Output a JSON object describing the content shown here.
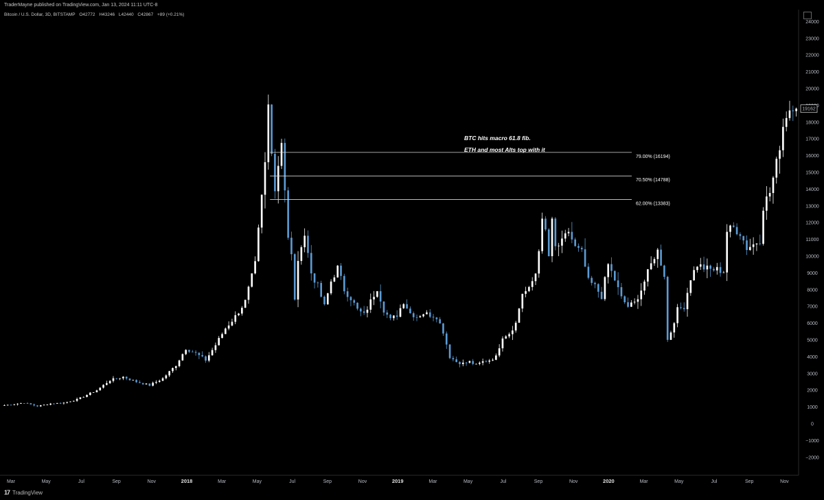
{
  "header": {
    "published": "TraderMayne published on TradingView.com, Jan 13, 2024 11:11 UTC-8"
  },
  "symbol": {
    "name": "Bitcoin / U.S. Dollar, 3D, BITSTAMP",
    "open": "O42772",
    "high": "H43246",
    "low": "L42440",
    "close": "C42867",
    "change": "+89 (+0.21%)"
  },
  "footer": {
    "logo": "17",
    "brand": "TradingView"
  },
  "chart_data": {
    "type": "candlestick",
    "title": "",
    "price_label": "19162",
    "y_ticks": [
      -2000,
      -1000,
      0,
      1000,
      2000,
      3000,
      4000,
      5000,
      6000,
      7000,
      8000,
      9000,
      10000,
      11000,
      12000,
      13000,
      14000,
      15000,
      16000,
      17000,
      18000,
      19000,
      20000,
      21000,
      22000,
      23000,
      24000
    ],
    "ylim": [
      -3000,
      24500
    ],
    "x_labels": [
      {
        "label": "Mar",
        "year": false
      },
      {
        "label": "May",
        "year": false
      },
      {
        "label": "Jul",
        "year": false
      },
      {
        "label": "Sep",
        "year": false
      },
      {
        "label": "Nov",
        "year": false
      },
      {
        "label": "2018",
        "year": true
      },
      {
        "label": "Mar",
        "year": false
      },
      {
        "label": "May",
        "year": false
      },
      {
        "label": "Jul",
        "year": false
      },
      {
        "label": "Sep",
        "year": false
      },
      {
        "label": "Nov",
        "year": false
      },
      {
        "label": "2019",
        "year": true
      },
      {
        "label": "Mar",
        "year": false
      },
      {
        "label": "May",
        "year": false
      },
      {
        "label": "Jul",
        "year": false
      },
      {
        "label": "Sep",
        "year": false
      },
      {
        "label": "Nov",
        "year": false
      },
      {
        "label": "2020",
        "year": true
      },
      {
        "label": "Mar",
        "year": false
      },
      {
        "label": "May",
        "year": false
      },
      {
        "label": "Jul",
        "year": false
      },
      {
        "label": "Sep",
        "year": false
      },
      {
        "label": "Nov",
        "year": false
      }
    ],
    "fib_levels": [
      {
        "label": "79.00% (16194)",
        "value": 16194
      },
      {
        "label": "70.50% (14788)",
        "value": 14788
      },
      {
        "label": "62.00% (13383)",
        "value": 13383
      }
    ],
    "annotations": [
      "BTC hits macro 61.8 fib.",
      "ETH and most Alts top with it"
    ],
    "up_color": "#ffffff",
    "down_color": "#5b9bd5",
    "price_anchors": [
      [
        0,
        1100
      ],
      [
        6,
        1250
      ],
      [
        10,
        1050
      ],
      [
        14,
        1200
      ],
      [
        18,
        1250
      ],
      [
        22,
        1450
      ],
      [
        28,
        2000
      ],
      [
        32,
        2600
      ],
      [
        36,
        2800
      ],
      [
        40,
        2500
      ],
      [
        44,
        2300
      ],
      [
        48,
        2700
      ],
      [
        52,
        3500
      ],
      [
        55,
        4500
      ],
      [
        58,
        4200
      ],
      [
        61,
        3800
      ],
      [
        64,
        4700
      ],
      [
        67,
        5700
      ],
      [
        70,
        6400
      ],
      [
        73,
        7300
      ],
      [
        76,
        9500
      ],
      [
        79,
        15500
      ],
      [
        80,
        19000
      ],
      [
        81,
        16500
      ],
      [
        82,
        14000
      ],
      [
        83,
        15500
      ],
      [
        84,
        17000
      ],
      [
        85,
        14000
      ],
      [
        86,
        11000
      ],
      [
        87,
        10000
      ],
      [
        88,
        7500
      ],
      [
        89,
        9500
      ],
      [
        90,
        10800
      ],
      [
        91,
        11300
      ],
      [
        93,
        9000
      ],
      [
        95,
        8200
      ],
      [
        97,
        7000
      ],
      [
        99,
        8500
      ],
      [
        101,
        9300
      ],
      [
        103,
        8000
      ],
      [
        105,
        7500
      ],
      [
        107,
        6800
      ],
      [
        109,
        6500
      ],
      [
        111,
        7300
      ],
      [
        113,
        8100
      ],
      [
        115,
        6800
      ],
      [
        117,
        6200
      ],
      [
        119,
        6500
      ],
      [
        121,
        7300
      ],
      [
        123,
        6600
      ],
      [
        125,
        6400
      ],
      [
        127,
        6600
      ],
      [
        129,
        6500
      ],
      [
        131,
        6400
      ],
      [
        133,
        5500
      ],
      [
        135,
        4000
      ],
      [
        137,
        3700
      ],
      [
        139,
        3600
      ],
      [
        141,
        3700
      ],
      [
        143,
        3500
      ],
      [
        145,
        3700
      ],
      [
        147,
        3800
      ],
      [
        149,
        4000
      ],
      [
        151,
        5200
      ],
      [
        153,
        5400
      ],
      [
        155,
        6000
      ],
      [
        157,
        7800
      ],
      [
        159,
        8000
      ],
      [
        161,
        9000
      ],
      [
        163,
        12000
      ],
      [
        164,
        11500
      ],
      [
        165,
        10000
      ],
      [
        166,
        12000
      ],
      [
        167,
        10500
      ],
      [
        169,
        10800
      ],
      [
        171,
        11500
      ],
      [
        173,
        10500
      ],
      [
        175,
        10200
      ],
      [
        177,
        8500
      ],
      [
        179,
        8200
      ],
      [
        181,
        7600
      ],
      [
        183,
        9500
      ],
      [
        185,
        8600
      ],
      [
        187,
        7500
      ],
      [
        189,
        7000
      ],
      [
        191,
        7200
      ],
      [
        193,
        8000
      ],
      [
        195,
        9000
      ],
      [
        197,
        10000
      ],
      [
        198,
        10300
      ],
      [
        199,
        9600
      ],
      [
        200,
        8900
      ],
      [
        201,
        5000
      ],
      [
        202,
        5500
      ],
      [
        204,
        6800
      ],
      [
        206,
        7000
      ],
      [
        208,
        8700
      ],
      [
        210,
        9500
      ],
      [
        212,
        9300
      ],
      [
        214,
        9200
      ],
      [
        216,
        9200
      ],
      [
        218,
        9100
      ],
      [
        219,
        11500
      ],
      [
        221,
        11700
      ],
      [
        223,
        11400
      ],
      [
        225,
        10500
      ],
      [
        227,
        10700
      ],
      [
        229,
        11000
      ],
      [
        230,
        13000
      ],
      [
        232,
        13800
      ],
      [
        234,
        15500
      ],
      [
        236,
        17800
      ],
      [
        237,
        18500
      ],
      [
        239,
        19100
      ],
      [
        240,
        19162
      ]
    ]
  }
}
